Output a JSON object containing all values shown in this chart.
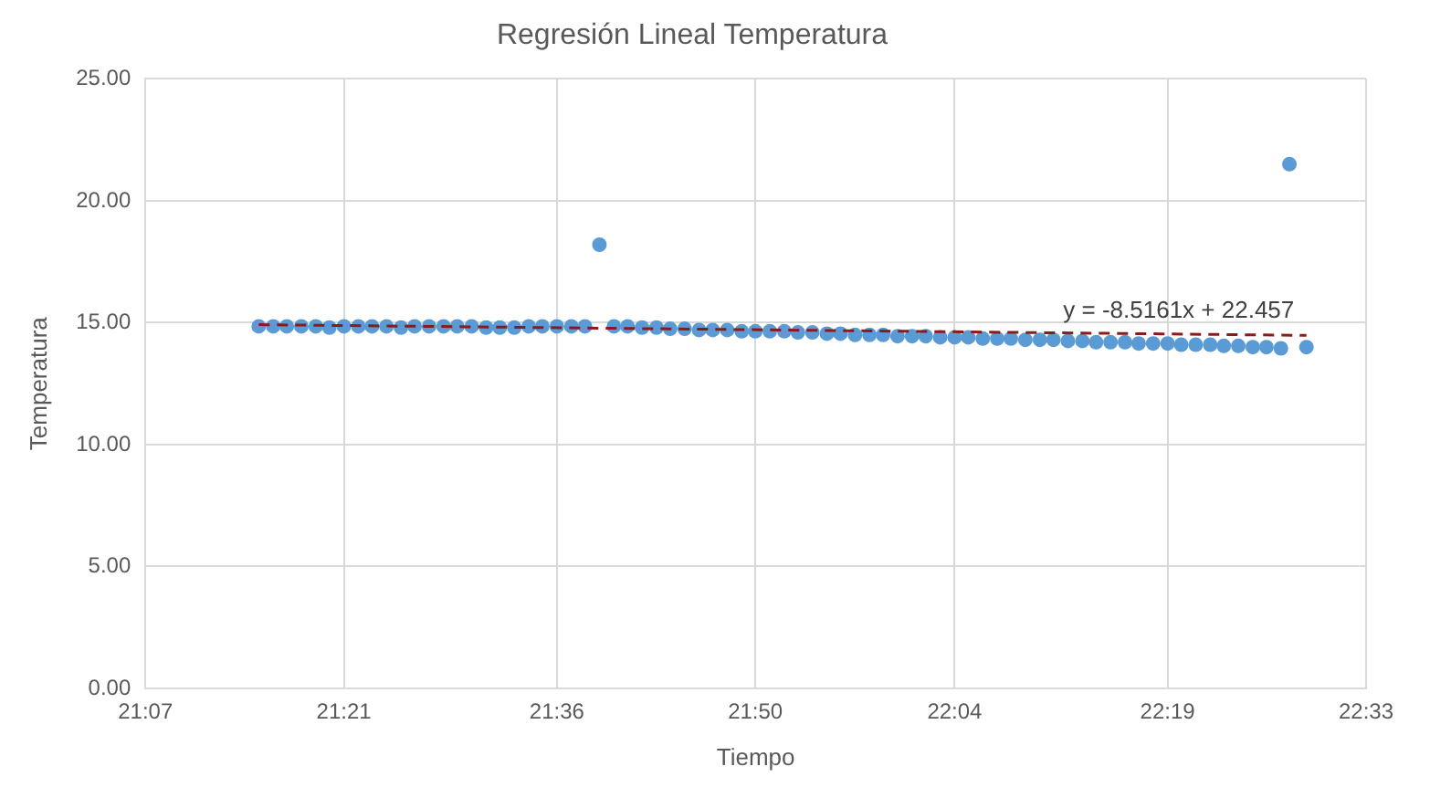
{
  "chart_data": {
    "type": "scatter",
    "title": "Regresión Lineal Temperatura",
    "xlabel": "Tiempo",
    "ylabel": "Temperatura",
    "xlim": [
      21.117,
      22.55
    ],
    "xticks": [
      {
        "value": 21.117,
        "label": "21:07"
      },
      {
        "value": 21.35,
        "label": "21:21"
      },
      {
        "value": 21.6,
        "label": "21:36"
      },
      {
        "value": 21.833,
        "label": "21:50"
      },
      {
        "value": 22.067,
        "label": "22:04"
      },
      {
        "value": 22.317,
        "label": "22:19"
      },
      {
        "value": 22.55,
        "label": "22:33"
      }
    ],
    "ylim": [
      0,
      25
    ],
    "yticks": [
      {
        "value": 0,
        "label": "0.00"
      },
      {
        "value": 5,
        "label": "5.00"
      },
      {
        "value": 10,
        "label": "10.00"
      },
      {
        "value": 15,
        "label": "15.00"
      },
      {
        "value": 20,
        "label": "20.00"
      },
      {
        "value": 25,
        "label": "25.00"
      }
    ],
    "grid": true,
    "legend": false,
    "marker": "circle",
    "series": [
      {
        "type": "scatter",
        "color": "#5b9bd5",
        "x": [
          21.25,
          21.267,
          21.283,
          21.3,
          21.317,
          21.333,
          21.35,
          21.367,
          21.383,
          21.4,
          21.417,
          21.433,
          21.45,
          21.467,
          21.483,
          21.5,
          21.517,
          21.533,
          21.55,
          21.567,
          21.583,
          21.6,
          21.617,
          21.633,
          21.65,
          21.667,
          21.683,
          21.7,
          21.717,
          21.733,
          21.75,
          21.767,
          21.783,
          21.8,
          21.817,
          21.833,
          21.85,
          21.867,
          21.883,
          21.9,
          21.917,
          21.933,
          21.95,
          21.967,
          21.983,
          22.0,
          22.017,
          22.033,
          22.05,
          22.067,
          22.083,
          22.1,
          22.117,
          22.133,
          22.15,
          22.167,
          22.183,
          22.2,
          22.217,
          22.233,
          22.25,
          22.267,
          22.283,
          22.3,
          22.317,
          22.333,
          22.35,
          22.367,
          22.383,
          22.4,
          22.417,
          22.433,
          22.45,
          22.46,
          22.48
        ],
        "values": [
          14.85,
          14.85,
          14.85,
          14.85,
          14.85,
          14.8,
          14.85,
          14.85,
          14.85,
          14.85,
          14.8,
          14.85,
          14.85,
          14.85,
          14.85,
          14.85,
          14.8,
          14.8,
          14.8,
          14.85,
          14.85,
          14.85,
          14.85,
          14.85,
          18.2,
          14.85,
          14.85,
          14.8,
          14.8,
          14.75,
          14.75,
          14.7,
          14.7,
          14.7,
          14.65,
          14.65,
          14.65,
          14.65,
          14.6,
          14.6,
          14.55,
          14.55,
          14.5,
          14.5,
          14.5,
          14.45,
          14.45,
          14.45,
          14.4,
          14.4,
          14.4,
          14.35,
          14.35,
          14.35,
          14.3,
          14.3,
          14.3,
          14.25,
          14.25,
          14.2,
          14.2,
          14.2,
          14.15,
          14.15,
          14.15,
          14.1,
          14.1,
          14.1,
          14.05,
          14.05,
          14.0,
          14.0,
          13.95,
          21.5,
          14.0
        ]
      },
      {
        "type": "line",
        "color": "#8b1a1a",
        "line_style": "dashed",
        "marker": "none",
        "x": [
          21.25,
          22.48
        ],
        "values": [
          14.92,
          14.48
        ]
      }
    ],
    "annotations": [
      {
        "text": "y = -8.5161x + 22.457",
        "x": 22.33,
        "y": 14.55
      }
    ]
  }
}
